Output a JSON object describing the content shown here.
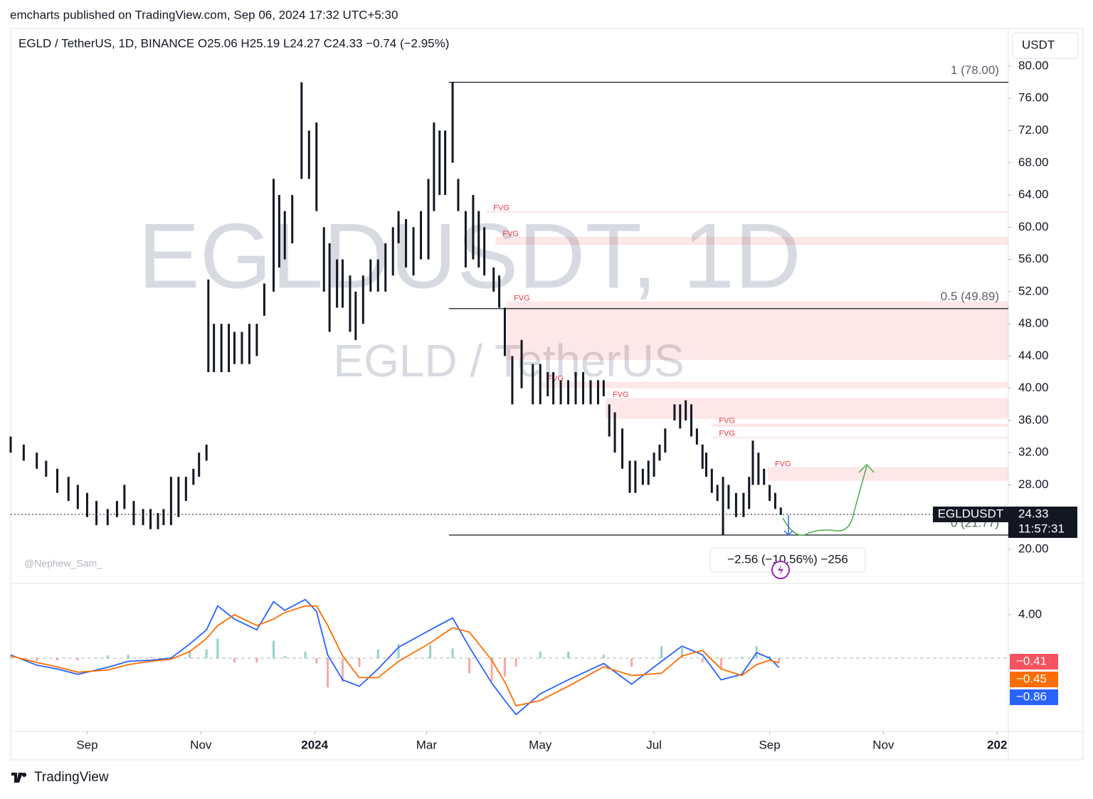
{
  "header": {
    "publisher": "emcharts published on TradingView.com, Sep 06, 2024 17:32 UTC+5:30",
    "brand": "TradingView"
  },
  "chart_data": {
    "type": "candlestick",
    "legend": "EGLD / TetherUS, 1D, BINANCE  O25.06  H25.19  L24.27  C24.33  −0.74 (−2.95%)",
    "currency": "USDT",
    "watermark": "EGLDUSDT, 1D",
    "watermark_sub": "EGLD / TetherUS",
    "author": "@Nephew_Sam_",
    "xlim": [
      -41,
      494
    ],
    "xticks": [
      {
        "value": 0,
        "label": "Sep"
      },
      {
        "value": 61,
        "label": "Nov"
      },
      {
        "value": 122,
        "label": "2024"
      },
      {
        "value": 182,
        "label": "Mar"
      },
      {
        "value": 243,
        "label": "May"
      },
      {
        "value": 304,
        "label": "Jul"
      },
      {
        "value": 366,
        "label": "Sep"
      },
      {
        "value": 427,
        "label": "Nov"
      },
      {
        "value": 488,
        "label": "202"
      }
    ],
    "ylim": [
      15.76,
      84.68
    ],
    "yticks": [
      {
        "value": 20,
        "label": "20.00"
      },
      {
        "value": 24,
        "label": "24.00"
      },
      {
        "value": 28,
        "label": "28.00"
      },
      {
        "value": 32,
        "label": "32.00"
      },
      {
        "value": 36,
        "label": "36.00"
      },
      {
        "value": 40,
        "label": "40.00"
      },
      {
        "value": 44,
        "label": "44.00"
      },
      {
        "value": 48,
        "label": "48.00"
      },
      {
        "value": 52,
        "label": "52.00"
      },
      {
        "value": 56,
        "label": "56.00"
      },
      {
        "value": 60,
        "label": "60.00"
      },
      {
        "value": 64,
        "label": "64.00"
      },
      {
        "value": 68,
        "label": "68.00"
      },
      {
        "value": 72,
        "label": "72.00"
      },
      {
        "value": 76,
        "label": "76.00"
      },
      {
        "value": 80,
        "label": "80.00"
      }
    ],
    "candles": {
      "color": "#131722",
      "x": [
        -41,
        -34,
        -27,
        -22,
        -16,
        -10,
        -5,
        0,
        5,
        11,
        16,
        20,
        25,
        30,
        34,
        38,
        41,
        45,
        49,
        53,
        57,
        60,
        64,
        65,
        68,
        72,
        76,
        79,
        83,
        87,
        91,
        95,
        100,
        103,
        106,
        110,
        115,
        119,
        123,
        127,
        130,
        134,
        137,
        141,
        144,
        148,
        152,
        156,
        160,
        164,
        167,
        171,
        175,
        179,
        183,
        186,
        189,
        192,
        196,
        199,
        203,
        207,
        210,
        213,
        218,
        221,
        224,
        228,
        233,
        239,
        243,
        247,
        250,
        254,
        258,
        262,
        266,
        270,
        274,
        277,
        280,
        283,
        287,
        291,
        294,
        298,
        301,
        304,
        307,
        310,
        315,
        318,
        321,
        324,
        327,
        330,
        332,
        335,
        338,
        341,
        344,
        348,
        352,
        355,
        357,
        360,
        363,
        366,
        369,
        372
      ],
      "high": [
        34,
        33,
        32,
        31,
        30,
        29,
        28,
        27,
        26,
        25,
        26,
        28,
        26,
        25,
        25,
        24.5,
        25,
        29,
        29,
        29,
        30,
        32,
        33,
        53.5,
        48,
        48,
        48,
        47,
        47,
        48,
        48,
        53,
        66,
        64,
        62,
        64,
        78,
        72,
        73,
        60,
        58,
        56,
        56,
        54,
        52,
        54,
        56,
        56,
        58,
        60,
        62,
        61,
        60,
        62,
        66,
        73,
        72,
        72,
        78,
        66,
        62,
        64,
        62,
        60,
        55,
        54,
        50,
        44,
        46,
        43,
        43,
        42,
        42,
        41,
        41,
        42,
        42,
        41,
        41,
        41,
        38,
        37,
        35,
        31,
        31,
        30,
        31,
        32,
        33,
        35,
        38,
        38,
        38.5,
        38,
        35,
        33,
        32,
        30,
        28,
        29,
        28,
        27,
        27,
        29,
        33.5,
        32,
        30,
        28,
        27,
        25.19
      ],
      "low": [
        32,
        31,
        30,
        29,
        27,
        26,
        25,
        24,
        23,
        23,
        24,
        25,
        23,
        23,
        22.5,
        22.5,
        23,
        23,
        24,
        26,
        28,
        29,
        31,
        42,
        42,
        42,
        42,
        43,
        43,
        43,
        44,
        49,
        52,
        55,
        56,
        58,
        66,
        66,
        62,
        52,
        47,
        50,
        50,
        47,
        46,
        48,
        52,
        52,
        52,
        54,
        58,
        55,
        54,
        56,
        56,
        62,
        64,
        64,
        68,
        62,
        55,
        56,
        55,
        54,
        52,
        50,
        44,
        38,
        40,
        38,
        38,
        39,
        38,
        38,
        38,
        38,
        38,
        38,
        38,
        39,
        34,
        32,
        30,
        27,
        27,
        28,
        28,
        29,
        31,
        32,
        36,
        35,
        36,
        34,
        33,
        30,
        29,
        27,
        26,
        21.77,
        25,
        24,
        24,
        25,
        28,
        28,
        28,
        26,
        25,
        24.27
      ]
    },
    "fib": {
      "start": 194,
      "color": "#131722",
      "levels": [
        {
          "label": "1 (78.00)",
          "value": 78
        },
        {
          "label": "0.5 (49.89)",
          "value": 49.89
        },
        {
          "label": "0 (21.77)",
          "value": 21.77
        }
      ]
    },
    "fvg": {
      "label": "FVG",
      "color": "#f23645",
      "zones": [
        {
          "start": 214,
          "low": 61.8,
          "high": 62.0
        },
        {
          "start": 219,
          "low": 57.8,
          "high": 58.8
        },
        {
          "start": 225,
          "low": 43.5,
          "high": 50.8
        },
        {
          "start": 243,
          "low": 40.0,
          "high": 40.8
        },
        {
          "start": 278,
          "low": 36.2,
          "high": 38.8
        },
        {
          "start": 335,
          "low": 35.2,
          "high": 35.6
        },
        {
          "start": 335,
          "low": 33.8,
          "high": 34.0
        },
        {
          "start": 365,
          "low": 28.5,
          "high": 30.2
        }
      ]
    },
    "last_price": {
      "value": 24.33,
      "symbol": "EGLDUSDT",
      "label": "24.33",
      "countdown": "11:57:31"
    },
    "measure": {
      "label": "−2.56 (−10.56%) −256"
    },
    "macd": {
      "ylim": [
        -6.23,
        6.75
      ],
      "yticks": [
        {
          "value": 4,
          "label": "4.00"
        }
      ],
      "x": [
        -41,
        -27,
        -16,
        -5,
        11,
        22,
        34,
        45,
        55,
        64,
        70,
        79,
        91,
        100,
        106,
        117,
        123,
        129,
        137,
        146,
        156,
        167,
        184,
        196,
        205,
        217,
        224,
        230,
        243,
        258,
        277,
        292,
        308,
        319,
        330,
        340,
        351,
        359,
        366,
        371
      ],
      "series": [
        {
          "name": "MACD",
          "color": "#2962ff",
          "values": [
            0.3,
            -0.65,
            -1.0,
            -1.5,
            -0.85,
            -0.3,
            -0.2,
            0,
            1.3,
            2.6,
            4.8,
            3.6,
            2.6,
            5.2,
            4.4,
            5.4,
            4.3,
            0.3,
            -2.0,
            -2.6,
            -1.0,
            1.0,
            2.6,
            3.7,
            1.0,
            -2.3,
            -3.9,
            -5.2,
            -3.3,
            -2.0,
            -0.5,
            -2.4,
            -0.3,
            1.1,
            0.3,
            -2.0,
            -1.5,
            0.5,
            0,
            -0.86
          ],
          "value_label": "−0.86"
        },
        {
          "name": "Signal",
          "color": "#ff6d00",
          "values": [
            0.2,
            -0.4,
            -0.8,
            -1.3,
            -1.1,
            -0.6,
            -0.3,
            -0.1,
            0.6,
            1.8,
            3.0,
            4.0,
            3.0,
            3.6,
            4.2,
            4.8,
            4.8,
            3.0,
            0.2,
            -1.8,
            -1.8,
            -0.3,
            1.4,
            2.8,
            2.4,
            -0.2,
            -2.2,
            -4.4,
            -3.9,
            -2.6,
            -0.8,
            -1.6,
            -1.4,
            0.2,
            0.7,
            -1.0,
            -1.6,
            -0.6,
            -0.2,
            -0.45
          ],
          "value_label": "−0.45"
        }
      ],
      "histogram": {
        "up_color": "#26a69a",
        "down_color": "#ef5350",
        "values": [
          0.1,
          -0.25,
          -0.2,
          -0.2,
          0.25,
          0.3,
          0.1,
          0.1,
          0.7,
          0.8,
          1.8,
          -0.4,
          -0.4,
          1.6,
          0.2,
          0.6,
          -0.5,
          -2.7,
          -2.2,
          -0.8,
          0.8,
          1.3,
          1.2,
          0.9,
          -1.4,
          -2.1,
          -1.7,
          -0.8,
          0.6,
          0.6,
          0.3,
          -0.8,
          1.1,
          0.9,
          -0.4,
          -1.0,
          0.1,
          1.1,
          0.2,
          -0.41
        ],
        "value_label": "−0.41"
      }
    }
  }
}
